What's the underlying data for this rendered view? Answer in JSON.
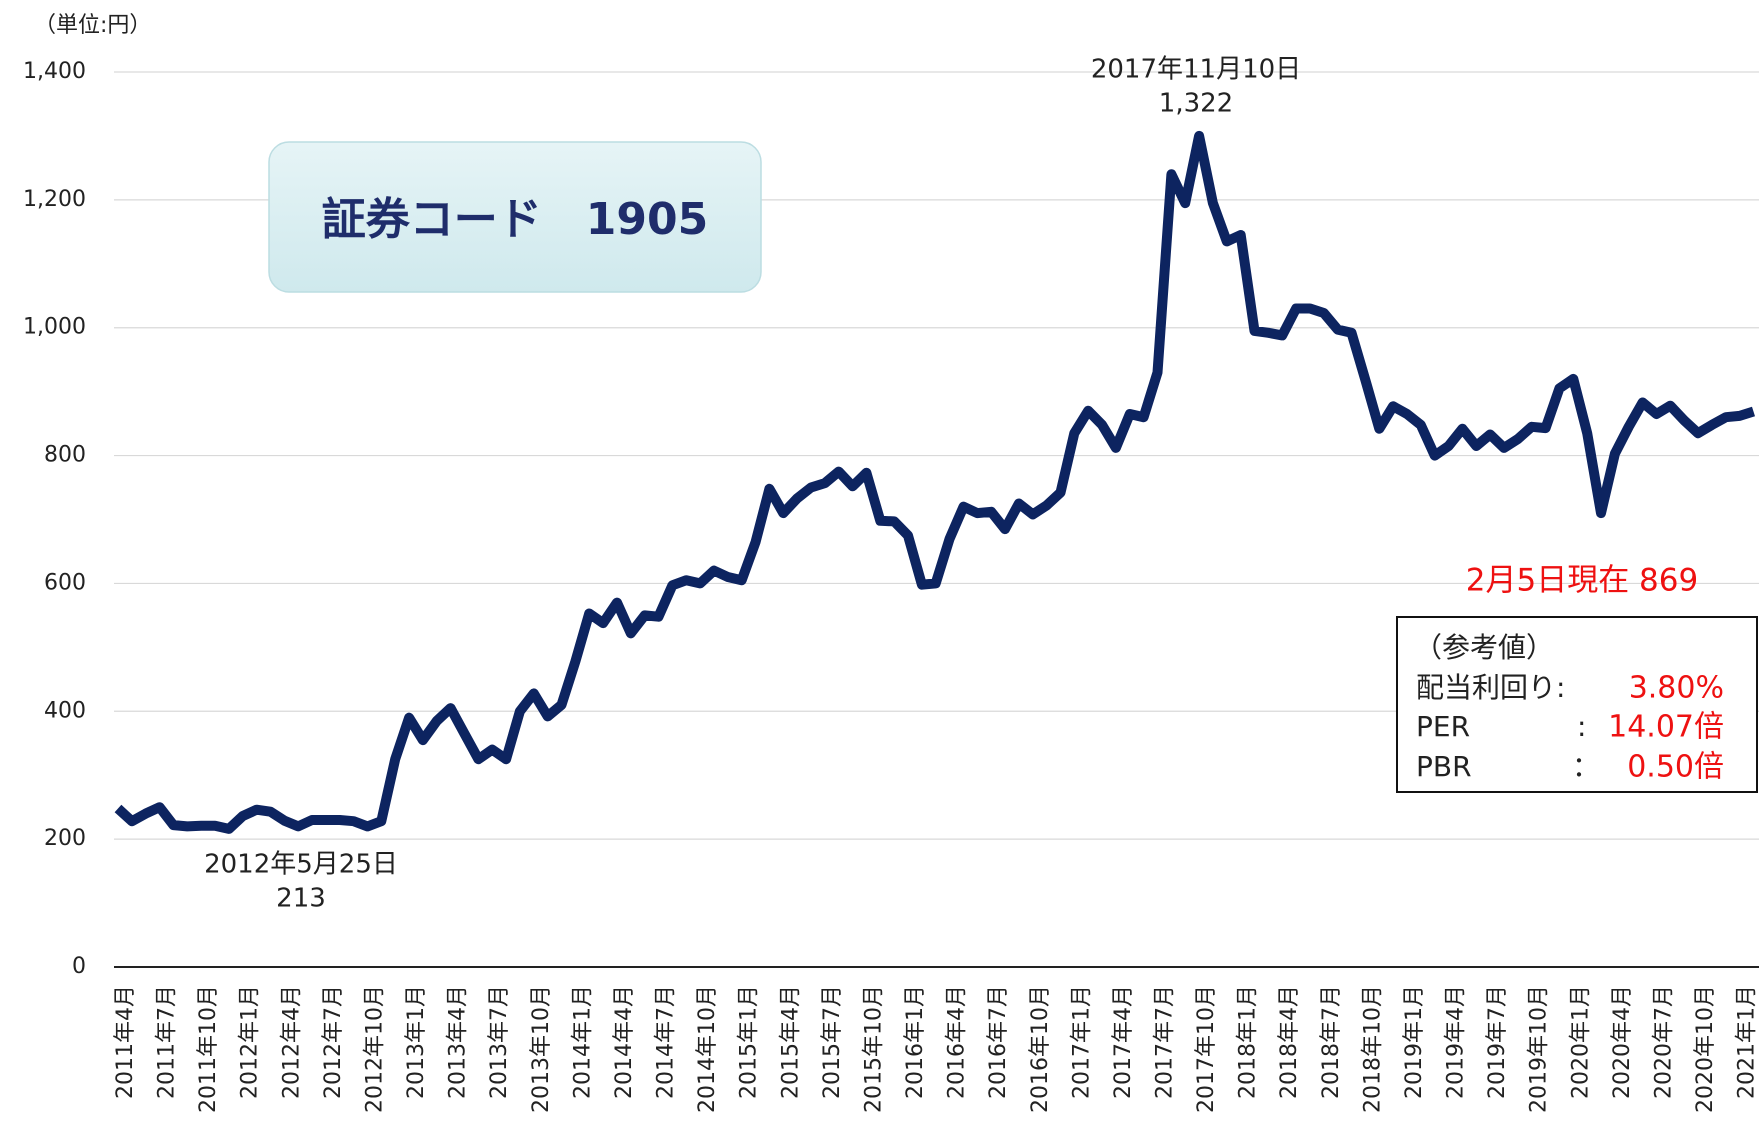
{
  "chart_data": {
    "type": "line",
    "unit_label": "（単位:円）",
    "badge": "証券コード　1905",
    "color": "#0d2460",
    "grid": true,
    "ylim": [
      0,
      1400
    ],
    "yticks": [
      0,
      200,
      400,
      600,
      800,
      {
        "value": 1000,
        "label": "1,000"
      },
      {
        "value": 1200,
        "label": "1,200"
      },
      {
        "value": 1400,
        "label": "1,400"
      }
    ],
    "categories": [
      "2011年4月",
      null,
      null,
      "2011年7月",
      null,
      null,
      "2011年10月",
      null,
      null,
      "2012年1月",
      null,
      null,
      "2012年4月",
      null,
      null,
      "2012年7月",
      null,
      null,
      "2012年10月",
      null,
      null,
      "2013年1月",
      null,
      null,
      "2013年4月",
      null,
      null,
      "2013年7月",
      null,
      null,
      "2013年10月",
      null,
      null,
      "2014年1月",
      null,
      null,
      "2014年4月",
      null,
      null,
      "2014年7月",
      null,
      null,
      "2014年10月",
      null,
      null,
      "2015年1月",
      null,
      null,
      "2015年4月",
      null,
      null,
      "2015年7月",
      null,
      null,
      "2015年10月",
      null,
      null,
      "2016年1月",
      null,
      null,
      "2016年4月",
      null,
      null,
      "2016年7月",
      null,
      null,
      "2016年10月",
      null,
      null,
      "2017年1月",
      null,
      null,
      "2017年4月",
      null,
      null,
      "2017年7月",
      null,
      null,
      "2017年10月",
      null,
      null,
      "2018年1月",
      null,
      null,
      "2018年4月",
      null,
      null,
      "2018年7月",
      null,
      null,
      "2018年10月",
      null,
      null,
      "2019年1月",
      null,
      null,
      "2019年4月",
      null,
      null,
      "2019年7月",
      null,
      null,
      "2019年10月",
      null,
      null,
      "2020年1月",
      null,
      null,
      "2020年4月",
      null,
      null,
      "2020年7月",
      null,
      null,
      "2020年10月",
      null,
      null,
      "2021年1月",
      null
    ],
    "values": [
      248,
      228,
      240,
      250,
      222,
      220,
      221,
      221,
      216,
      236,
      246,
      243,
      229,
      220,
      230,
      230,
      230,
      228,
      220,
      228,
      325,
      390,
      355,
      385,
      405,
      365,
      325,
      340,
      325,
      400,
      428,
      392,
      410,
      478,
      553,
      538,
      570,
      522,
      550,
      548,
      597,
      605,
      600,
      620,
      610,
      605,
      665,
      748,
      710,
      733,
      750,
      757,
      775,
      752,
      773,
      698,
      697,
      675,
      598,
      600,
      670,
      720,
      710,
      712,
      685,
      725,
      708,
      722,
      742,
      835,
      870,
      848,
      812,
      865,
      860,
      930,
      1240,
      1195,
      1300,
      1195,
      1135,
      1145,
      995,
      992,
      988,
      1030,
      1030,
      1023,
      997,
      992,
      918,
      842,
      877,
      865,
      848,
      800,
      815,
      842,
      815,
      833,
      812,
      826,
      845,
      843,
      905,
      920,
      835,
      710,
      803,
      845,
      883,
      865,
      878,
      855,
      835,
      848,
      860,
      862,
      869
    ],
    "annotations": [
      {
        "text": "2017年11月10日",
        "value_text": "1,322"
      },
      {
        "text": "2012年5月25日",
        "value_text": "213"
      }
    ],
    "current": "2月5日現在  869",
    "reference": {
      "title": "（参考値）",
      "rows": [
        {
          "label": "配当利回り:",
          "value": "3.80%"
        },
        {
          "label": "PER",
          "sep": ":",
          "value": "14.07倍"
        },
        {
          "label": "PBR",
          "sep": "：",
          "value": "0.50倍"
        }
      ]
    }
  }
}
